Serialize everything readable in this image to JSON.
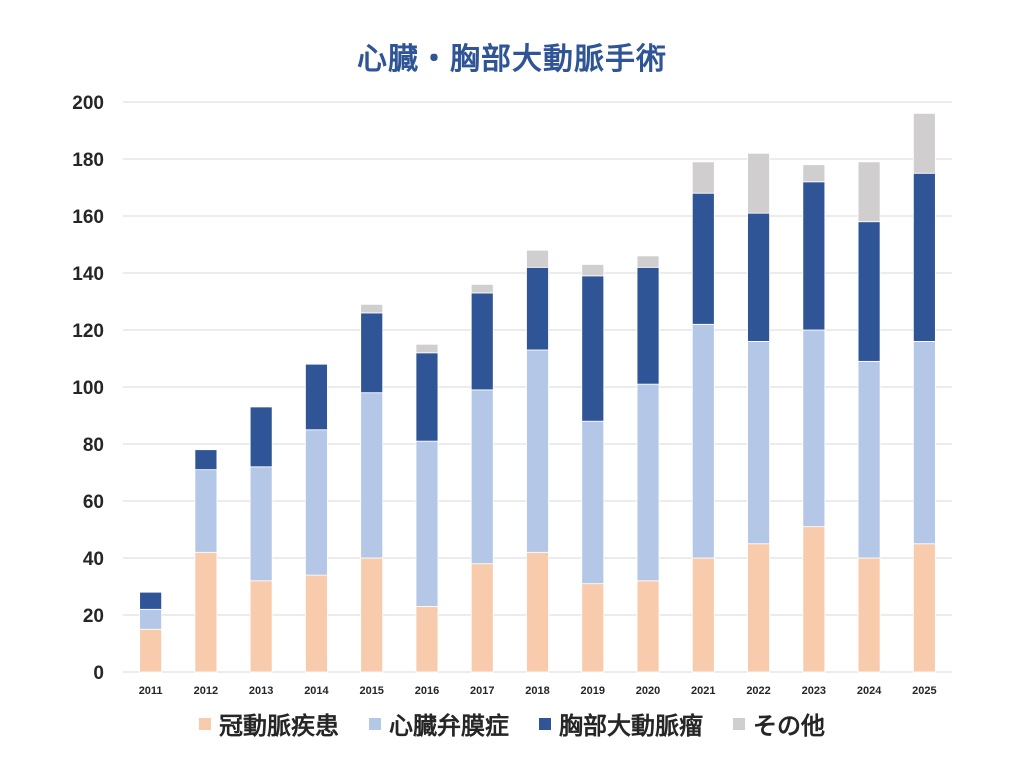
{
  "chart_data": {
    "type": "bar",
    "stacked": true,
    "title": "心臓・胸部大動脈手術",
    "xlabel": "",
    "ylabel": "",
    "ylim": [
      0,
      200
    ],
    "yticks": [
      0,
      20,
      40,
      60,
      80,
      100,
      120,
      140,
      160,
      180,
      200
    ],
    "grid": true,
    "legend_position": "bottom",
    "categories": [
      "2011",
      "2012",
      "2013",
      "2014",
      "2015",
      "2016",
      "2017",
      "2018",
      "2019",
      "2020",
      "2021",
      "2022",
      "2023",
      "2024",
      "2025"
    ],
    "series": [
      {
        "name": "冠動脈疾患",
        "color": "#f8cbad",
        "values": [
          15,
          42,
          32,
          34,
          40,
          23,
          38,
          42,
          31,
          32,
          40,
          45,
          51,
          40,
          45
        ]
      },
      {
        "name": "心臓弁膜症",
        "color": "#b4c7e7",
        "values": [
          7,
          29,
          40,
          51,
          58,
          58,
          61,
          71,
          57,
          69,
          82,
          71,
          69,
          69,
          71
        ]
      },
      {
        "name": "胸部大動脈瘤",
        "color": "#2f5597",
        "values": [
          6,
          7,
          21,
          23,
          28,
          31,
          34,
          29,
          51,
          41,
          46,
          45,
          52,
          49,
          59
        ]
      },
      {
        "name": "その他",
        "color": "#d0cece",
        "values": [
          0,
          0,
          0,
          0,
          3,
          3,
          3,
          6,
          4,
          4,
          11,
          21,
          6,
          21,
          21
        ]
      }
    ]
  }
}
